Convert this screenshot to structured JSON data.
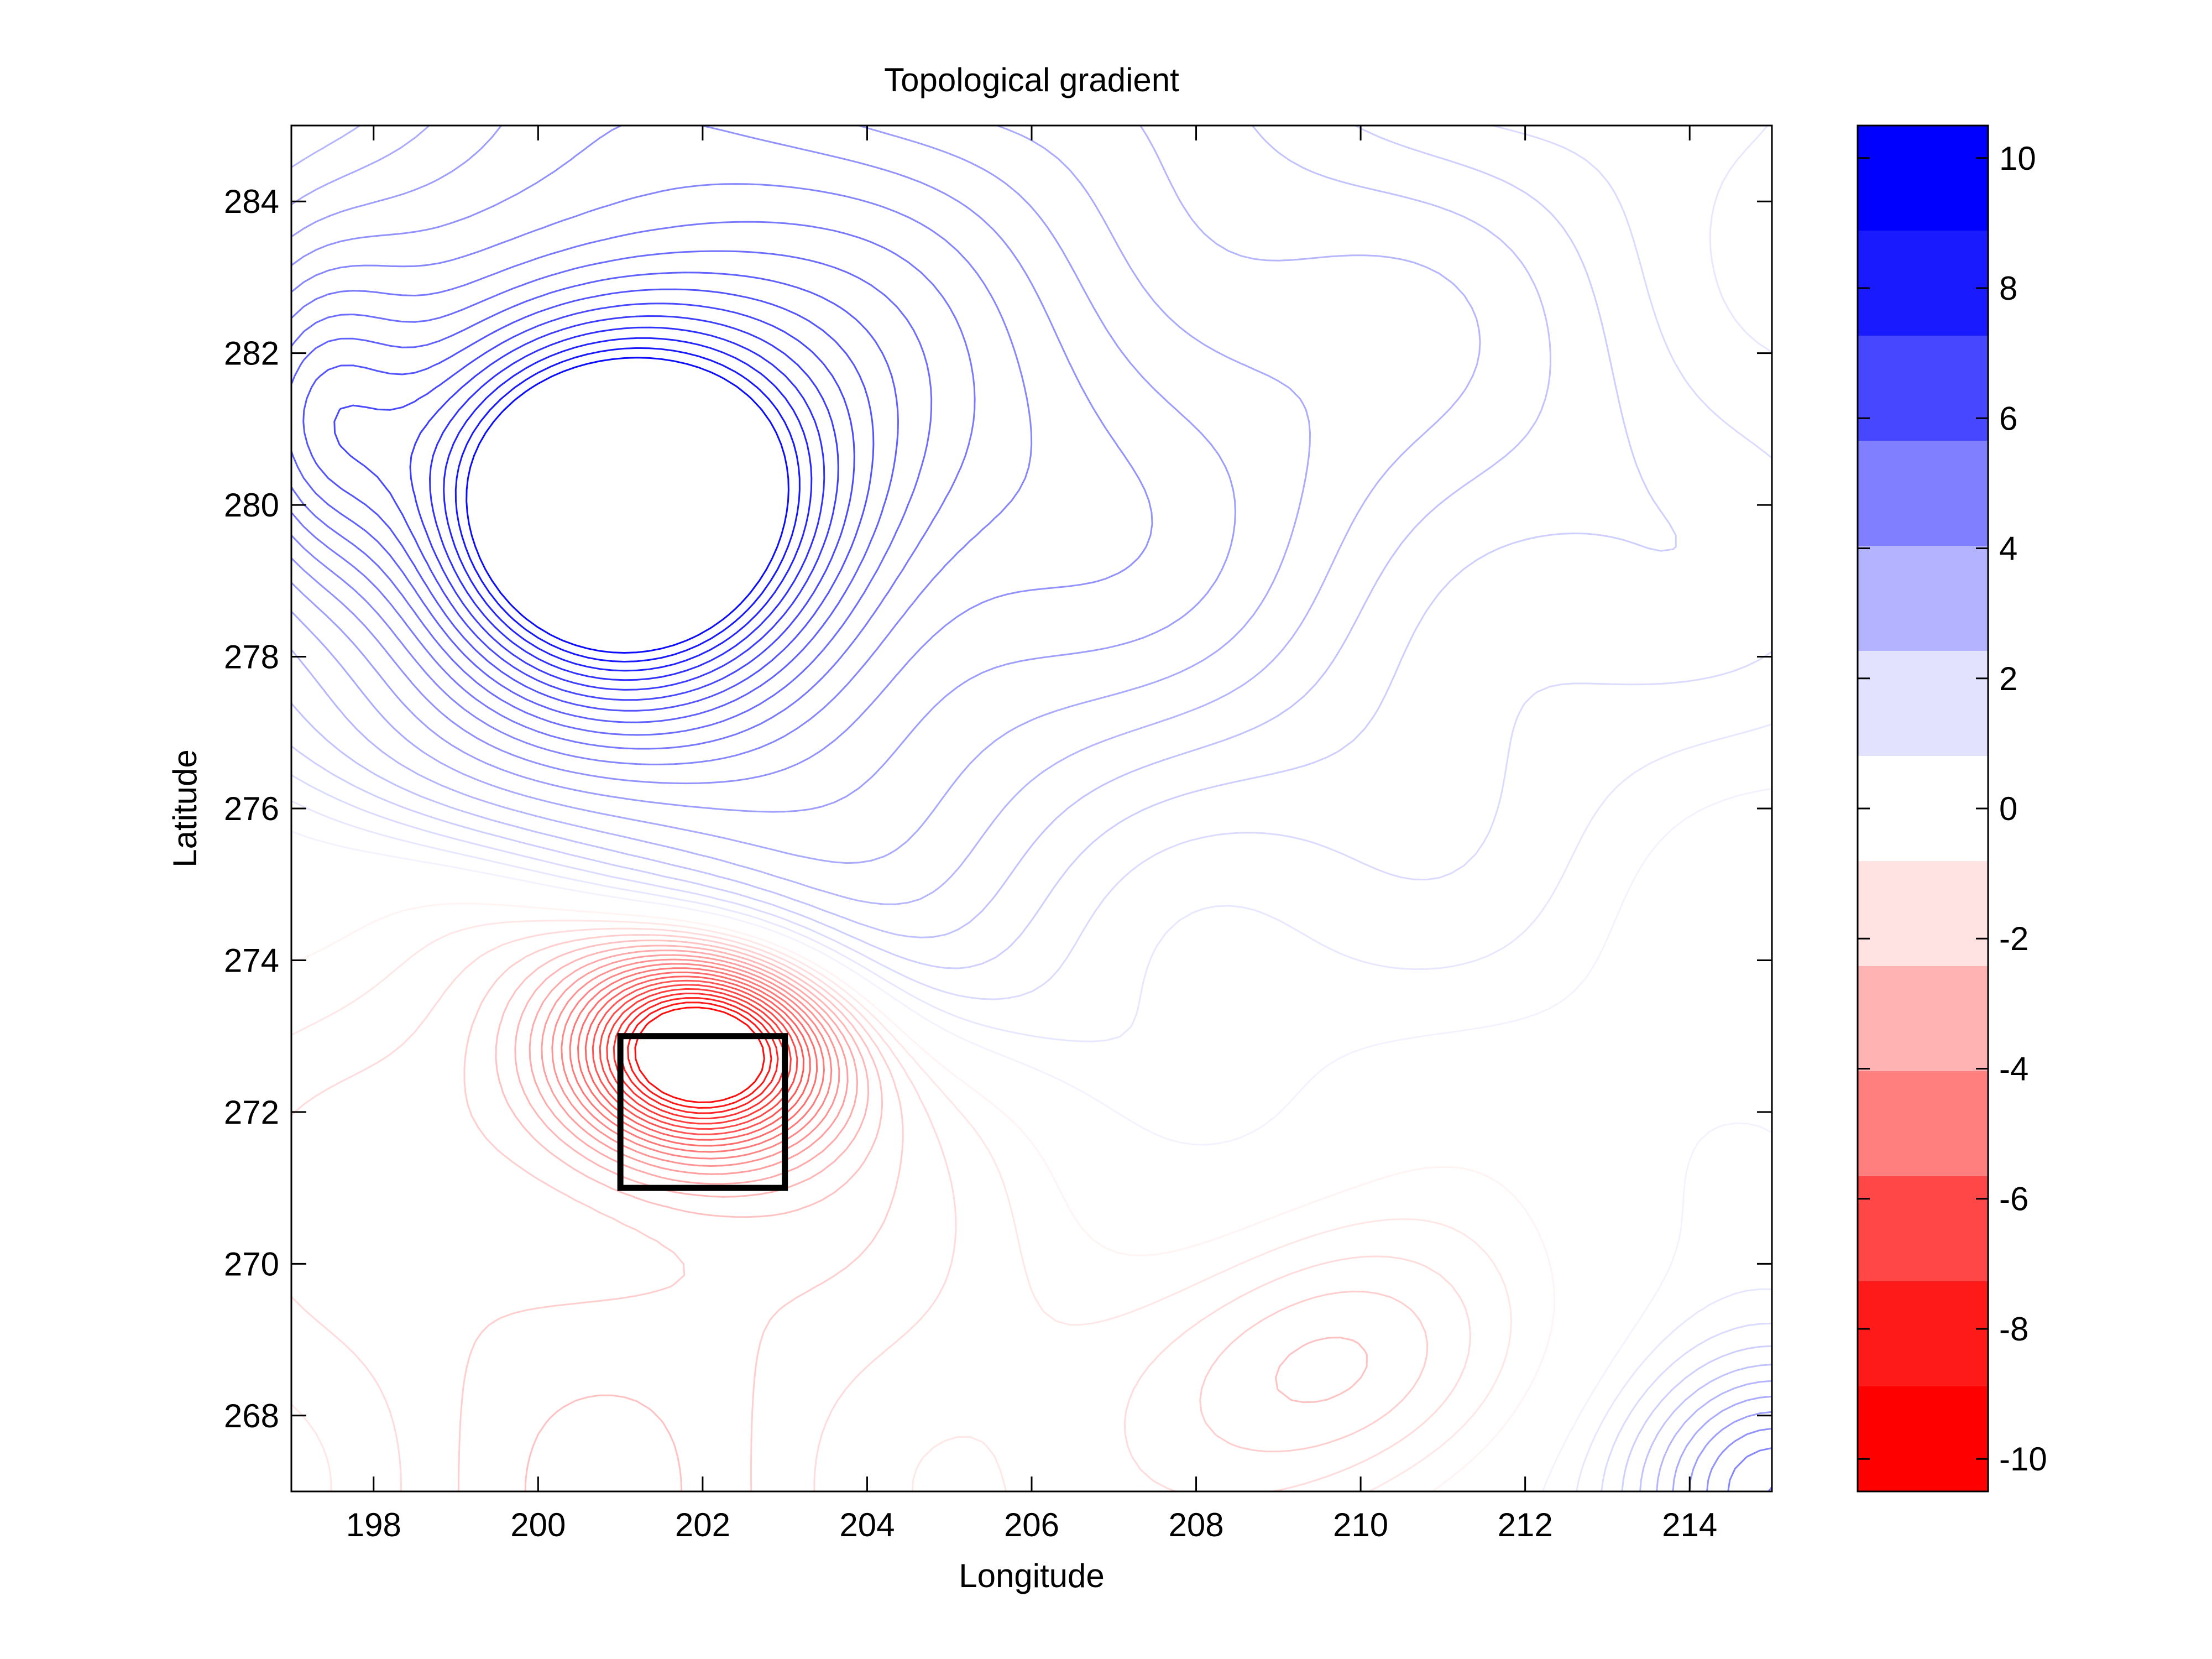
{
  "chart_data": {
    "type": "contour",
    "title": "Topological gradient",
    "xlabel": "Longitude",
    "ylabel": "Latitude",
    "xlim": [
      197,
      215
    ],
    "ylim": [
      267,
      285
    ],
    "xticks": [
      198,
      200,
      202,
      204,
      206,
      208,
      210,
      212,
      214
    ],
    "yticks": [
      268,
      270,
      272,
      274,
      276,
      278,
      280,
      282,
      284
    ],
    "colorbar": {
      "range": [
        -10.5,
        10.5
      ],
      "ticks": [
        10,
        8,
        6,
        4,
        2,
        0,
        -2,
        -4,
        -6,
        -8,
        -10
      ],
      "tick_labels": [
        "10",
        "8",
        "6",
        "4",
        "2",
        "0",
        "-2",
        "-4",
        "-6",
        "-8",
        "-10"
      ],
      "bands_top_to_bottom": [
        "#0000ff",
        "#1a1aff",
        "#4747ff",
        "#7f7fff",
        "#b3b3ff",
        "#e2e2ff",
        "#ffffff",
        "#ffe2e2",
        "#ffb3b3",
        "#ff7f7f",
        "#ff4747",
        "#ff1a1a",
        "#ff0000"
      ]
    },
    "features": [
      {
        "kind": "positive-peak",
        "center": [
          201,
          280
        ],
        "value": 10
      },
      {
        "kind": "negative-peak",
        "center": [
          202,
          273
        ],
        "value": -10
      },
      {
        "kind": "steep-ridge",
        "from": [
          197,
          276.5
        ],
        "to": [
          205,
          273
        ]
      }
    ],
    "highlight_box": {
      "x": [
        201,
        203
      ],
      "y": [
        271,
        273
      ],
      "color": "#000000"
    },
    "grid": false,
    "legend": "none",
    "colors": {
      "positive": "#0000ff",
      "negative": "#ff0000",
      "neutral": "#ffffff"
    }
  }
}
